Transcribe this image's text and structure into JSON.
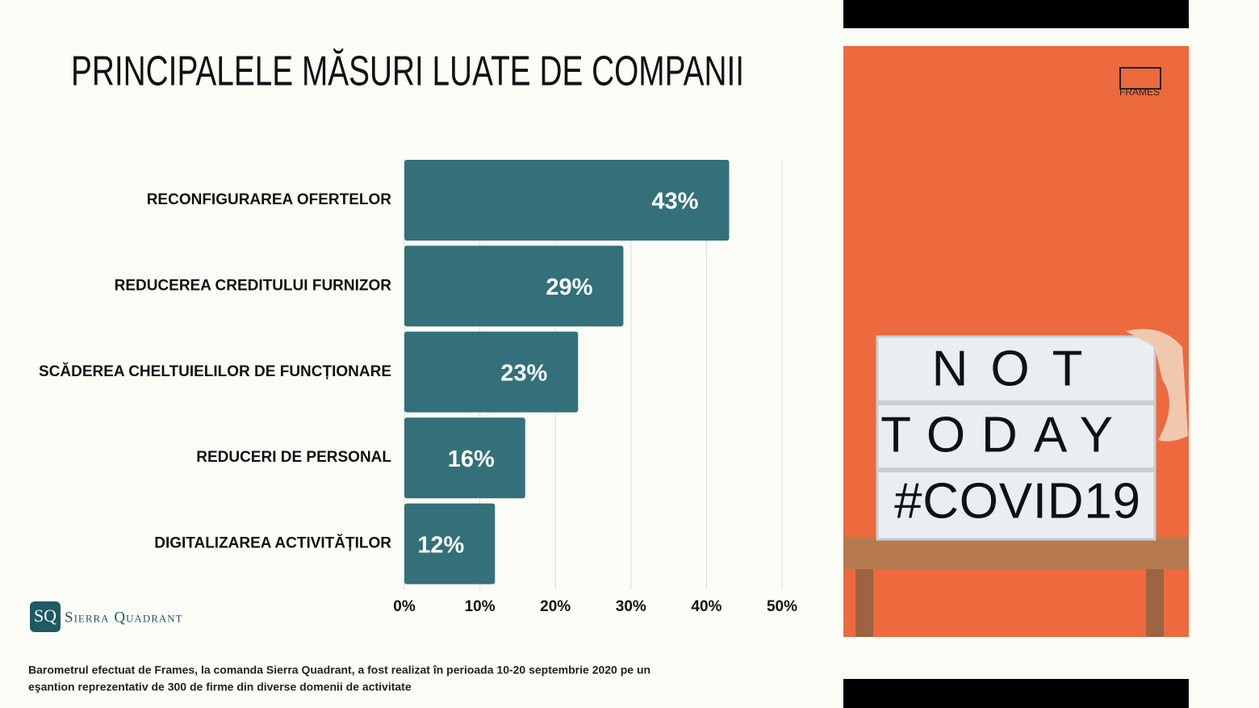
{
  "chart_data": {
    "type": "hbar",
    "title": "PRINCIPALELE  MĂSURI LUATE DE COMPANII",
    "categories": [
      "RECONFIGURAREA OFERTELOR",
      "REDUCEREA CREDITULUI FURNIZOR",
      "SCĂDEREA CHELTUIELILOR DE FUNCȚIONARE",
      "REDUCERI DE PERSONAL",
      "DIGITALIZAREA ACTIVITĂȚILOR"
    ],
    "values": [
      43,
      29,
      23,
      16,
      12
    ],
    "value_labels": [
      "43%",
      "29%",
      "23%",
      "16%",
      "12%"
    ],
    "color": "#33707a",
    "xlim": [
      0,
      50
    ],
    "xticks": [
      {
        "value": 0,
        "label": "0%"
      },
      {
        "value": 10,
        "label": "10%"
      },
      {
        "value": 20,
        "label": "20%"
      },
      {
        "value": 30,
        "label": "30%"
      },
      {
        "value": 40,
        "label": "40%"
      },
      {
        "value": 50,
        "label": "50%"
      }
    ],
    "grid": true
  },
  "logo": {
    "initials": "SQ",
    "name": "Sierra Quadrant"
  },
  "footnote": [
    "Barometrul efectuat de Frames, la comanda Sierra Quadrant, a fost realizat în perioada 10-20 septembrie 2020 pe un",
    "eşantion reprezentativ de 300 de firme din diverse domenii de activitate"
  ],
  "photo": {
    "brand": "FRAMES",
    "lightbox": [
      "NOT",
      "TODAY",
      "#COVID19"
    ]
  }
}
